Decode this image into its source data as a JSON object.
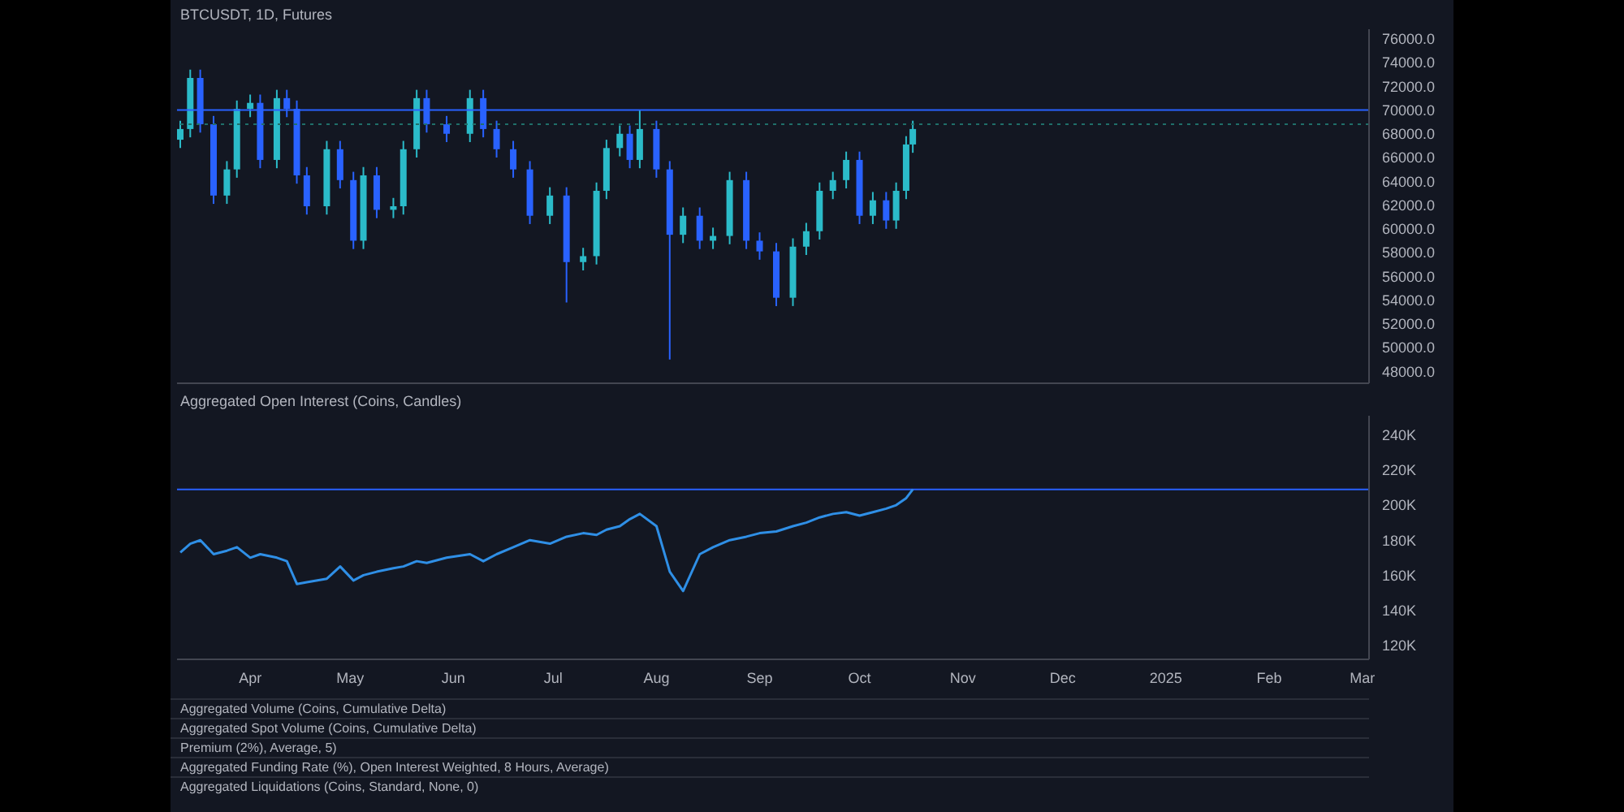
{
  "chart_data": [
    {
      "type": "candlestick",
      "title": "BTCUSDT, 1D, Futures",
      "x": [
        "2024-03-11",
        "2024-03-14",
        "2024-03-17",
        "2024-03-21",
        "2024-03-25",
        "2024-03-28",
        "2024-04-01",
        "2024-04-04",
        "2024-04-09",
        "2024-04-12",
        "2024-04-15",
        "2024-04-18",
        "2024-04-24",
        "2024-04-28",
        "2024-05-02",
        "2024-05-05",
        "2024-05-09",
        "2024-05-14",
        "2024-05-17",
        "2024-05-21",
        "2024-05-24",
        "2024-05-30",
        "2024-06-06",
        "2024-06-10",
        "2024-06-14",
        "2024-06-19",
        "2024-06-24",
        "2024-06-30",
        "2024-07-05",
        "2024-07-10",
        "2024-07-14",
        "2024-07-17",
        "2024-07-21",
        "2024-07-24",
        "2024-07-27",
        "2024-08-01",
        "2024-08-05",
        "2024-08-09",
        "2024-08-14",
        "2024-08-18",
        "2024-08-23",
        "2024-08-28",
        "2024-09-01",
        "2024-09-06",
        "2024-09-11",
        "2024-09-15",
        "2024-09-19",
        "2024-09-23",
        "2024-09-27",
        "2024-10-01",
        "2024-10-05",
        "2024-10-09",
        "2024-10-12",
        "2024-10-15",
        "2024-10-17"
      ],
      "ohlc": [
        [
          67500,
          69100,
          66800,
          68400
        ],
        [
          68400,
          73400,
          67700,
          72700
        ],
        [
          72700,
          73400,
          68100,
          68800
        ],
        [
          68800,
          69500,
          62100,
          62800
        ],
        [
          62800,
          65700,
          62100,
          65000
        ],
        [
          65000,
          70800,
          64300,
          70100
        ],
        [
          70100,
          71300,
          69400,
          70600
        ],
        [
          70600,
          71300,
          65100,
          65800
        ],
        [
          65800,
          71700,
          65100,
          71000
        ],
        [
          71000,
          71700,
          69400,
          70100
        ],
        [
          70100,
          70800,
          63800,
          64500
        ],
        [
          64500,
          65200,
          61200,
          61900
        ],
        [
          61900,
          67400,
          61200,
          66700
        ],
        [
          66700,
          67400,
          63400,
          64100
        ],
        [
          64100,
          64800,
          58300,
          59000
        ],
        [
          59000,
          65200,
          58300,
          64500
        ],
        [
          64500,
          65200,
          60900,
          61600
        ],
        [
          61600,
          62600,
          60900,
          61900
        ],
        [
          61900,
          67400,
          61200,
          66700
        ],
        [
          66700,
          71700,
          66000,
          71000
        ],
        [
          71000,
          71700,
          68100,
          68800
        ],
        [
          68800,
          69500,
          67300,
          68000
        ],
        [
          68000,
          71700,
          67300,
          71000
        ],
        [
          71000,
          71700,
          67700,
          68400
        ],
        [
          68400,
          69100,
          66000,
          66700
        ],
        [
          66700,
          67400,
          64300,
          65000
        ],
        [
          65000,
          65700,
          60400,
          61100
        ],
        [
          61100,
          63500,
          60400,
          62800
        ],
        [
          62800,
          63500,
          53800,
          57200
        ],
        [
          57200,
          58400,
          56500,
          57700
        ],
        [
          57700,
          63900,
          57000,
          63200
        ],
        [
          63200,
          67500,
          62500,
          66800
        ],
        [
          66800,
          68700,
          66100,
          68000
        ],
        [
          68000,
          68700,
          65100,
          65800
        ],
        [
          65800,
          70000,
          65100,
          68400
        ],
        [
          68400,
          69100,
          64300,
          65000
        ],
        [
          65000,
          65700,
          49000,
          59500
        ],
        [
          59500,
          61800,
          58800,
          61100
        ],
        [
          61100,
          61800,
          58300,
          59000
        ],
        [
          59000,
          60100,
          58300,
          59400
        ],
        [
          59400,
          64800,
          58700,
          64100
        ],
        [
          64100,
          64800,
          58300,
          59000
        ],
        [
          59000,
          59700,
          57400,
          58100
        ],
        [
          58100,
          58800,
          53500,
          54200
        ],
        [
          54200,
          59200,
          53500,
          58500
        ],
        [
          58500,
          60500,
          57800,
          59800
        ],
        [
          59800,
          63900,
          59100,
          63200
        ],
        [
          63200,
          64800,
          62500,
          64100
        ],
        [
          64100,
          66500,
          63400,
          65800
        ],
        [
          65800,
          66500,
          60400,
          61100
        ],
        [
          61100,
          63100,
          60400,
          62400
        ],
        [
          62400,
          63100,
          60000,
          60700
        ],
        [
          60700,
          63900,
          60000,
          63200
        ],
        [
          63200,
          67800,
          62500,
          67100
        ],
        [
          67100,
          69100,
          66400,
          68400
        ]
      ],
      "xlim": [
        "2024-03-10",
        "2025-03-03"
      ],
      "ylim": [
        47000,
        76800
      ],
      "yticks": [
        {
          "value": 48000,
          "label": "48000.0"
        },
        {
          "value": 50000,
          "label": "50000.0"
        },
        {
          "value": 52000,
          "label": "52000.0"
        },
        {
          "value": 54000,
          "label": "54000.0"
        },
        {
          "value": 56000,
          "label": "56000.0"
        },
        {
          "value": 58000,
          "label": "58000.0"
        },
        {
          "value": 60000,
          "label": "60000.0"
        },
        {
          "value": 62000,
          "label": "62000.0"
        },
        {
          "value": 64000,
          "label": "64000.0"
        },
        {
          "value": 66000,
          "label": "66000.0"
        },
        {
          "value": 68000,
          "label": "68000.0"
        },
        {
          "value": 70000,
          "label": "70000.0"
        },
        {
          "value": 72000,
          "label": "72000.0"
        },
        {
          "value": 74000,
          "label": "74000.0"
        },
        {
          "value": 76000,
          "label": "76000.0"
        }
      ],
      "ref_lines": [
        {
          "axis": "y",
          "value": 70000,
          "color": "#2962ff",
          "line_style": "solid"
        },
        {
          "axis": "y",
          "value": 68800,
          "color": "#1f6f6a",
          "line_style": "dotted"
        }
      ],
      "tick_labels": "y",
      "grid": false,
      "legend": false
    },
    {
      "type": "line",
      "title": "Aggregated Open Interest (Coins, Candles)",
      "x": [
        "2024-03-11",
        "2024-03-14",
        "2024-03-17",
        "2024-03-21",
        "2024-03-25",
        "2024-03-28",
        "2024-04-01",
        "2024-04-04",
        "2024-04-09",
        "2024-04-12",
        "2024-04-15",
        "2024-04-18",
        "2024-04-24",
        "2024-04-28",
        "2024-05-02",
        "2024-05-05",
        "2024-05-09",
        "2024-05-14",
        "2024-05-17",
        "2024-05-21",
        "2024-05-24",
        "2024-05-30",
        "2024-06-06",
        "2024-06-10",
        "2024-06-14",
        "2024-06-19",
        "2024-06-24",
        "2024-06-30",
        "2024-07-05",
        "2024-07-10",
        "2024-07-14",
        "2024-07-17",
        "2024-07-21",
        "2024-07-24",
        "2024-07-27",
        "2024-08-01",
        "2024-08-05",
        "2024-08-09",
        "2024-08-14",
        "2024-08-18",
        "2024-08-23",
        "2024-08-28",
        "2024-09-01",
        "2024-09-06",
        "2024-09-11",
        "2024-09-15",
        "2024-09-19",
        "2024-09-23",
        "2024-09-27",
        "2024-10-01",
        "2024-10-05",
        "2024-10-09",
        "2024-10-12",
        "2024-10-15",
        "2024-10-17"
      ],
      "series": [
        {
          "color": "#2f8fe6",
          "values": [
            173,
            178,
            180,
            172,
            174,
            176,
            170,
            172,
            170,
            168,
            155,
            156,
            158,
            165,
            157,
            160,
            162,
            164,
            165,
            168,
            167,
            170,
            172,
            168,
            172,
            176,
            180,
            178,
            182,
            184,
            183,
            186,
            188,
            192,
            195,
            188,
            162,
            151,
            172,
            176,
            180,
            182,
            184,
            185,
            188,
            190,
            193,
            195,
            196,
            194,
            196,
            198,
            200,
            204,
            209
          ]
        }
      ],
      "xlim": [
        "2024-03-10",
        "2025-03-03"
      ],
      "xticks": [
        {
          "value": "2024-04-01",
          "label": "Apr"
        },
        {
          "value": "2024-05-01",
          "label": "May"
        },
        {
          "value": "2024-06-01",
          "label": "Jun"
        },
        {
          "value": "2024-07-01",
          "label": "Jul"
        },
        {
          "value": "2024-08-01",
          "label": "Aug"
        },
        {
          "value": "2024-09-01",
          "label": "Sep"
        },
        {
          "value": "2024-10-01",
          "label": "Oct"
        },
        {
          "value": "2024-11-01",
          "label": "Nov"
        },
        {
          "value": "2024-12-01",
          "label": "Dec"
        },
        {
          "value": "2025-01-01",
          "label": "2025"
        },
        {
          "value": "2025-02-01",
          "label": "Feb"
        },
        {
          "value": "2025-03-01",
          "label": "Mar"
        }
      ],
      "ylim": [
        112,
        251
      ],
      "yticks": [
        {
          "value": 120,
          "label": "120K"
        },
        {
          "value": 140,
          "label": "140K"
        },
        {
          "value": 160,
          "label": "160K"
        },
        {
          "value": 180,
          "label": "180K"
        },
        {
          "value": 200,
          "label": "200K"
        },
        {
          "value": 220,
          "label": "220K"
        },
        {
          "value": 240,
          "label": "240K"
        }
      ],
      "ref_lines": [
        {
          "axis": "y",
          "value": 209,
          "color": "#2962ff",
          "line_style": "solid"
        }
      ],
      "annotations": [
        "Aggregated Volume (Coins, Cumulative Delta)",
        "Aggregated Spot Volume (Coins, Cumulative Delta)",
        "Premium (2%), Average, 5)",
        "Aggregated Funding Rate (%), Open Interest Weighted, 8 Hours, Average)",
        "Aggregated Liquidations (Coins, Standard, None, 0)"
      ],
      "marker": "none",
      "line_style": "solid",
      "grid": false,
      "legend": false
    }
  ]
}
